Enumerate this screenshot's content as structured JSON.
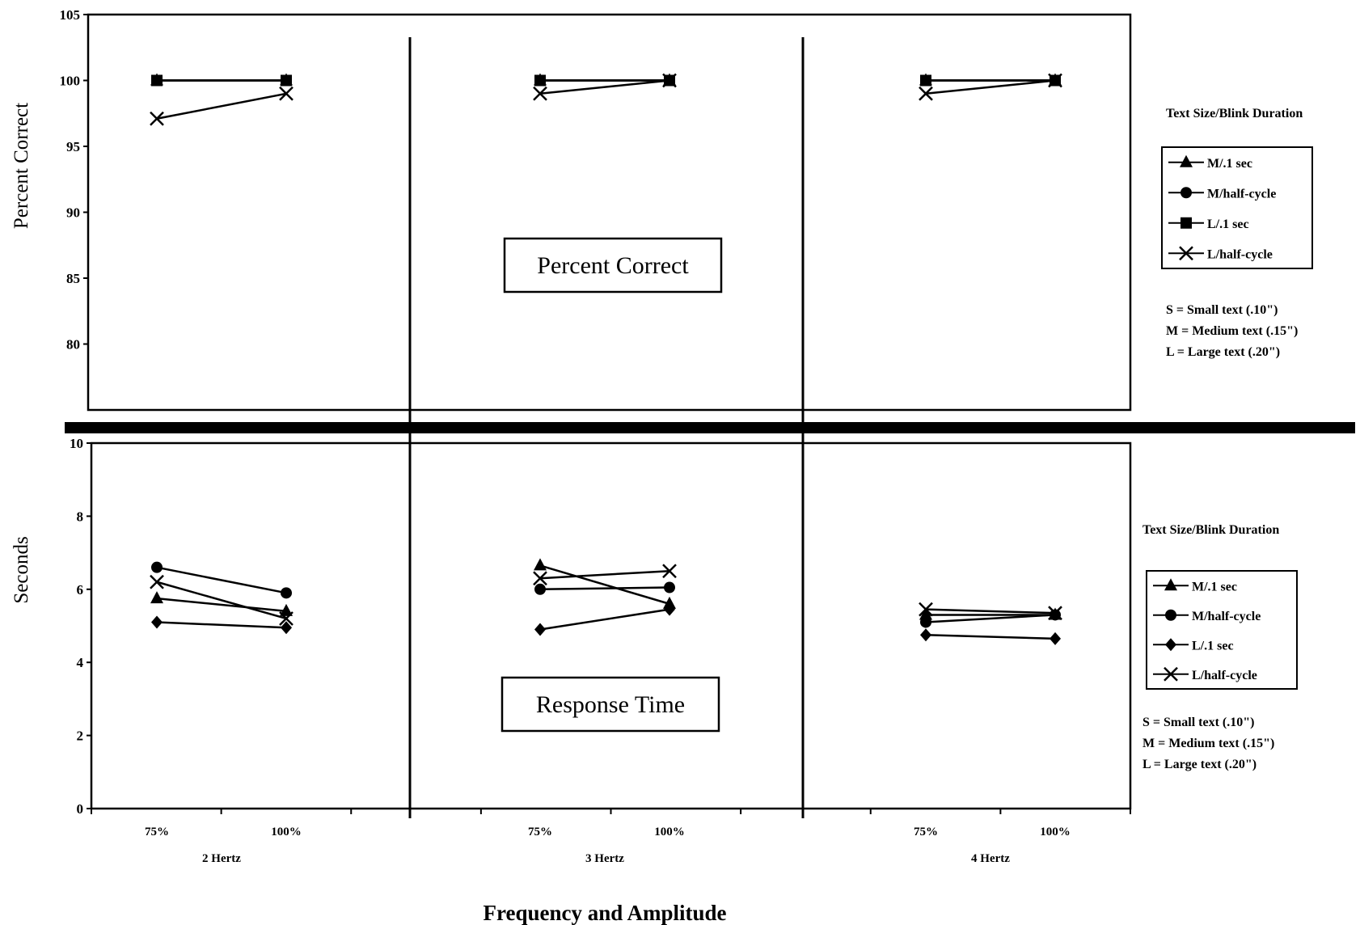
{
  "chart_data": [
    {
      "type": "line",
      "title": "Percent Correct",
      "ylabel": "Percent Correct",
      "ylim": [
        75,
        105
      ],
      "yticks": [
        "80",
        "85",
        "90",
        "95",
        "100",
        "105"
      ],
      "groups": [
        "2 Hertz",
        "3 Hertz",
        "4 Hertz"
      ],
      "categories": [
        "75%",
        "100%"
      ],
      "legend_title": "Text Size/Blink Duration",
      "series": [
        {
          "name": "M/.1 sec",
          "marker": "triangle",
          "values": [
            [
              100,
              100
            ],
            [
              100,
              100
            ],
            [
              100,
              100
            ]
          ]
        },
        {
          "name": "M/half-cycle",
          "marker": "circle",
          "values": [
            [
              100,
              100
            ],
            [
              100,
              100
            ],
            [
              100,
              100
            ]
          ]
        },
        {
          "name": "L/.1 sec",
          "marker": "square",
          "values": [
            [
              100,
              100
            ],
            [
              100,
              100
            ],
            [
              100,
              100
            ]
          ]
        },
        {
          "name": "L/half-cycle",
          "marker": "x",
          "values": [
            [
              97.1,
              99
            ],
            [
              99,
              100
            ],
            [
              99,
              100
            ]
          ]
        }
      ],
      "notes": [
        "S  = Small text (.10\")",
        "M = Medium text (.15\")",
        "L  = Large text (.20\")"
      ]
    },
    {
      "type": "line",
      "title": "Response Time",
      "ylabel": "Seconds",
      "ylim": [
        0,
        10
      ],
      "yticks": [
        "0",
        "2",
        "4",
        "6",
        "8",
        "10"
      ],
      "groups": [
        "2 Hertz",
        "3 Hertz",
        "4 Hertz"
      ],
      "categories": [
        "75%",
        "100%"
      ],
      "legend_title": "Text Size/Blink Duration",
      "series": [
        {
          "name": "M/.1 sec",
          "marker": "triangle",
          "values": [
            [
              5.75,
              5.4
            ],
            [
              6.65,
              5.6
            ],
            [
              5.3,
              5.3
            ]
          ]
        },
        {
          "name": "M/half-cycle",
          "marker": "circle",
          "values": [
            [
              6.6,
              5.9
            ],
            [
              6.0,
              6.05
            ],
            [
              5.1,
              5.3
            ]
          ]
        },
        {
          "name": "L/.1 sec",
          "marker": "diamond",
          "values": [
            [
              5.1,
              4.95
            ],
            [
              4.9,
              5.45
            ],
            [
              4.75,
              4.65
            ]
          ]
        },
        {
          "name": "L/half-cycle",
          "marker": "x",
          "values": [
            [
              6.2,
              5.2
            ],
            [
              6.3,
              6.5
            ],
            [
              5.45,
              5.35
            ]
          ]
        }
      ],
      "notes": [
        "S  = Small text (.10\")",
        "M = Medium text (.15\")",
        "L  = Large text (.20\")"
      ]
    }
  ],
  "xlabel": "Frequency and Amplitude"
}
